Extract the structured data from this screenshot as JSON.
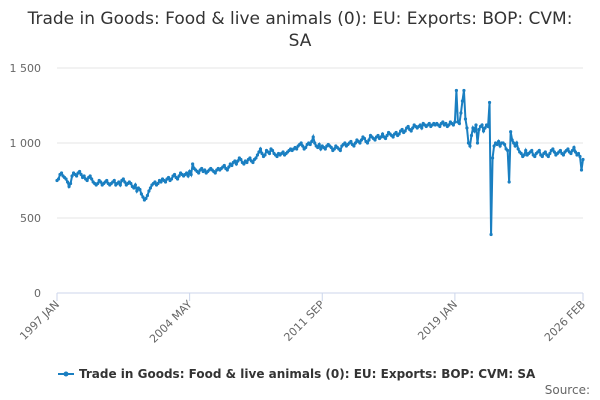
{
  "chart_data": {
    "type": "line",
    "title": "Trade in Goods: Food & live animals (0): EU: Exports: BOP: CVM: SA",
    "source": "Source:",
    "ylim": [
      0,
      1500
    ],
    "yticks": [
      0,
      500,
      {
        "value": 1000,
        "label": "1 000"
      },
      {
        "value": 1500,
        "label": "1 500"
      }
    ],
    "grid": true,
    "legend": "bottom",
    "categories": [
      "1997 JAN",
      null,
      null,
      null,
      null,
      null,
      null,
      null,
      null,
      null,
      null,
      null,
      null,
      null,
      null,
      null,
      null,
      null,
      null,
      null,
      null,
      null,
      null,
      null,
      null,
      null,
      null,
      null,
      null,
      null,
      null,
      null,
      null,
      null,
      null,
      null,
      null,
      null,
      null,
      null,
      null,
      null,
      null,
      null,
      null,
      null,
      null,
      null,
      null,
      null,
      null,
      null,
      null,
      null,
      null,
      null,
      null,
      null,
      null,
      null,
      null,
      null,
      null,
      null,
      null,
      null,
      null,
      null,
      null,
      null,
      null,
      null,
      null,
      null,
      null,
      null,
      null,
      null,
      null,
      null,
      null,
      null,
      null,
      null,
      null,
      null,
      null,
      null,
      "2004 MAY",
      null,
      null,
      null,
      null,
      null,
      null,
      null,
      null,
      null,
      null,
      null,
      null,
      null,
      null,
      null,
      null,
      null,
      null,
      null,
      null,
      null,
      null,
      null,
      null,
      null,
      null,
      null,
      null,
      null,
      null,
      null,
      null,
      null,
      null,
      null,
      null,
      null,
      null,
      null,
      null,
      null,
      null,
      null,
      null,
      null,
      null,
      null,
      null,
      null,
      null,
      null,
      null,
      null,
      null,
      null,
      null,
      null,
      null,
      null,
      null,
      null,
      null,
      null,
      null,
      null,
      null,
      null,
      null,
      null,
      null,
      null,
      null,
      null,
      null,
      null,
      null,
      null,
      null,
      null,
      null,
      null,
      null,
      null,
      null,
      null,
      null,
      null,
      "2011 SEP",
      null,
      null,
      null,
      null,
      null,
      null,
      null,
      null,
      null,
      null,
      null,
      null,
      null,
      null,
      null,
      null,
      null,
      null,
      null,
      null,
      null,
      null,
      null,
      null,
      null,
      null,
      null,
      null,
      null,
      null,
      null,
      null,
      null,
      null,
      null,
      null,
      null,
      null,
      null,
      null,
      null,
      null,
      null,
      null,
      null,
      null,
      null,
      null,
      null,
      null,
      null,
      null,
      null,
      null,
      null,
      null,
      null,
      null,
      null,
      null,
      null,
      null,
      null,
      null,
      null,
      null,
      null,
      null,
      null,
      null,
      null,
      null,
      null,
      null,
      null,
      null,
      null,
      null,
      null,
      null,
      null,
      null,
      null,
      null,
      null,
      null,
      null,
      "2019 JAN",
      null,
      null,
      null,
      null,
      null,
      null,
      null,
      null,
      null,
      null,
      null,
      null,
      null,
      null,
      null,
      null,
      null,
      null,
      null,
      null,
      null,
      null,
      null,
      null,
      null,
      null,
      null,
      null,
      null,
      null,
      null,
      null,
      null,
      null,
      null,
      null,
      null,
      null,
      null,
      null,
      null,
      null,
      null,
      null,
      null,
      null,
      null,
      null,
      null,
      null,
      null,
      null,
      null,
      null,
      null,
      null,
      null,
      null,
      null,
      null,
      null,
      null,
      null,
      null,
      null,
      null,
      null,
      null,
      null,
      null,
      null,
      null,
      null,
      null,
      null,
      null,
      null,
      null,
      null,
      null,
      null,
      null,
      null,
      null,
      "2026 FEB"
    ],
    "series": [
      {
        "name": "Trade in Goods: Food & live animals (0): EU: Exports: BOP: CVM: SA",
        "color": "#1a7fc1",
        "values": [
          750,
          760,
          790,
          800,
          780,
          770,
          760,
          740,
          710,
          730,
          780,
          800,
          790,
          780,
          800,
          810,
          790,
          770,
          780,
          760,
          750,
          770,
          780,
          760,
          740,
          730,
          720,
          730,
          750,
          740,
          720,
          730,
          740,
          750,
          730,
          720,
          730,
          740,
          750,
          720,
          730,
          740,
          720,
          750,
          760,
          740,
          720,
          730,
          740,
          730,
          710,
          700,
          720,
          680,
          700,
          690,
          660,
          640,
          620,
          630,
          650,
          680,
          700,
          720,
          730,
          740,
          720,
          730,
          750,
          740,
          760,
          750,
          740,
          760,
          770,
          750,
          760,
          780,
          790,
          770,
          760,
          780,
          800,
          790,
          780,
          790,
          800,
          780,
          810,
          790,
          860,
          830,
          820,
          810,
          800,
          820,
          830,
          810,
          820,
          800,
          810,
          820,
          830,
          820,
          810,
          800,
          820,
          830,
          820,
          830,
          840,
          850,
          830,
          820,
          840,
          860,
          850,
          870,
          880,
          860,
          880,
          900,
          890,
          870,
          860,
          880,
          870,
          890,
          900,
          880,
          870,
          890,
          900,
          920,
          940,
          960,
          930,
          910,
          920,
          950,
          940,
          930,
          960,
          950,
          930,
          920,
          910,
          930,
          920,
          930,
          940,
          920,
          930,
          940,
          950,
          960,
          950,
          960,
          970,
          960,
          980,
          990,
          1000,
          980,
          960,
          970,
          990,
          1000,
          990,
          1010,
          1040,
          1000,
          980,
          970,
          990,
          960,
          980,
          970,
          960,
          980,
          990,
          980,
          970,
          950,
          960,
          980,
          970,
          960,
          950,
          980,
          990,
          1000,
          980,
          990,
          1000,
          1010,
          990,
          980,
          1000,
          1020,
          1010,
          1000,
          1020,
          1040,
          1030,
          1010,
          1000,
          1020,
          1050,
          1040,
          1030,
          1020,
          1040,
          1050,
          1030,
          1040,
          1060,
          1040,
          1030,
          1050,
          1070,
          1060,
          1050,
          1040,
          1060,
          1070,
          1050,
          1060,
          1080,
          1090,
          1070,
          1080,
          1100,
          1110,
          1090,
          1080,
          1100,
          1120,
          1110,
          1100,
          1110,
          1120,
          1100,
          1130,
          1120,
          1110,
          1120,
          1130,
          1110,
          1120,
          1130,
          1120,
          1130,
          1120,
          1110,
          1130,
          1140,
          1120,
          1130,
          1110,
          1120,
          1140,
          1130,
          1120,
          1140,
          1350,
          1140,
          1130,
          1200,
          1280,
          1350,
          1160,
          1100,
          1000,
          980,
          1050,
          1100,
          1080,
          1120,
          1000,
          1090,
          1110,
          1120,
          1080,
          1100,
          1120,
          1110,
          1270,
          390,
          900,
          980,
          1000,
          990,
          1010,
          980,
          1000,
          1000,
          990,
          960,
          950,
          740,
          1075,
          1020,
          1000,
          980,
          1000,
          960,
          940,
          930,
          910,
          920,
          950,
          920,
          930,
          940,
          950,
          920,
          910,
          930,
          940,
          950,
          920,
          910,
          930,
          940,
          920,
          910,
          930,
          950,
          960,
          940,
          920,
          930,
          940,
          950,
          930,
          920,
          940,
          950,
          960,
          940,
          930,
          950,
          970,
          940,
          920,
          930,
          910,
          820,
          890
        ]
      }
    ]
  }
}
